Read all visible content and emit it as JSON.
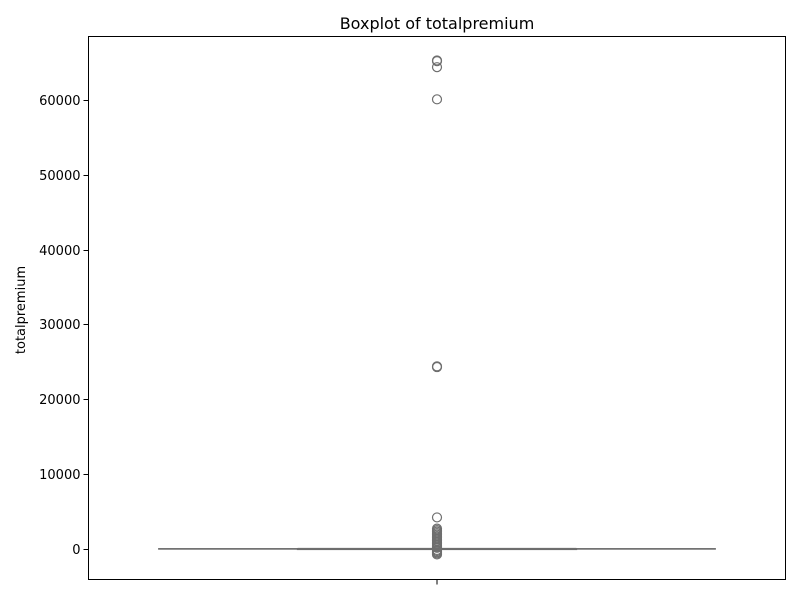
{
  "chart_data": {
    "type": "box",
    "title": "Boxplot of totalpremium",
    "xlabel": "",
    "ylabel": "totalpremium",
    "ylim": [
      -4100,
      68500
    ],
    "yticks": [
      0,
      10000,
      20000,
      30000,
      40000,
      50000,
      60000
    ],
    "ytick_labels": [
      "0",
      "10000",
      "20000",
      "30000",
      "40000",
      "50000",
      "60000"
    ],
    "grid": false,
    "legend": "none",
    "box": {
      "q1": 0,
      "median": 0,
      "q3": 0,
      "whisker_low": 0,
      "whisker_high": 0
    },
    "outliers": [
      65300,
      65200,
      64400,
      60100,
      24400,
      24300,
      4200,
      2700,
      2500,
      2300,
      2100,
      1900,
      1700,
      1500,
      1300,
      1100,
      900,
      700,
      500,
      300,
      150,
      -150,
      -300,
      -450,
      -600,
      -750
    ],
    "colors": {
      "box_line": "#6e6e6e",
      "outlier_edge": "#6e6e6e",
      "axes": "#000000"
    }
  }
}
